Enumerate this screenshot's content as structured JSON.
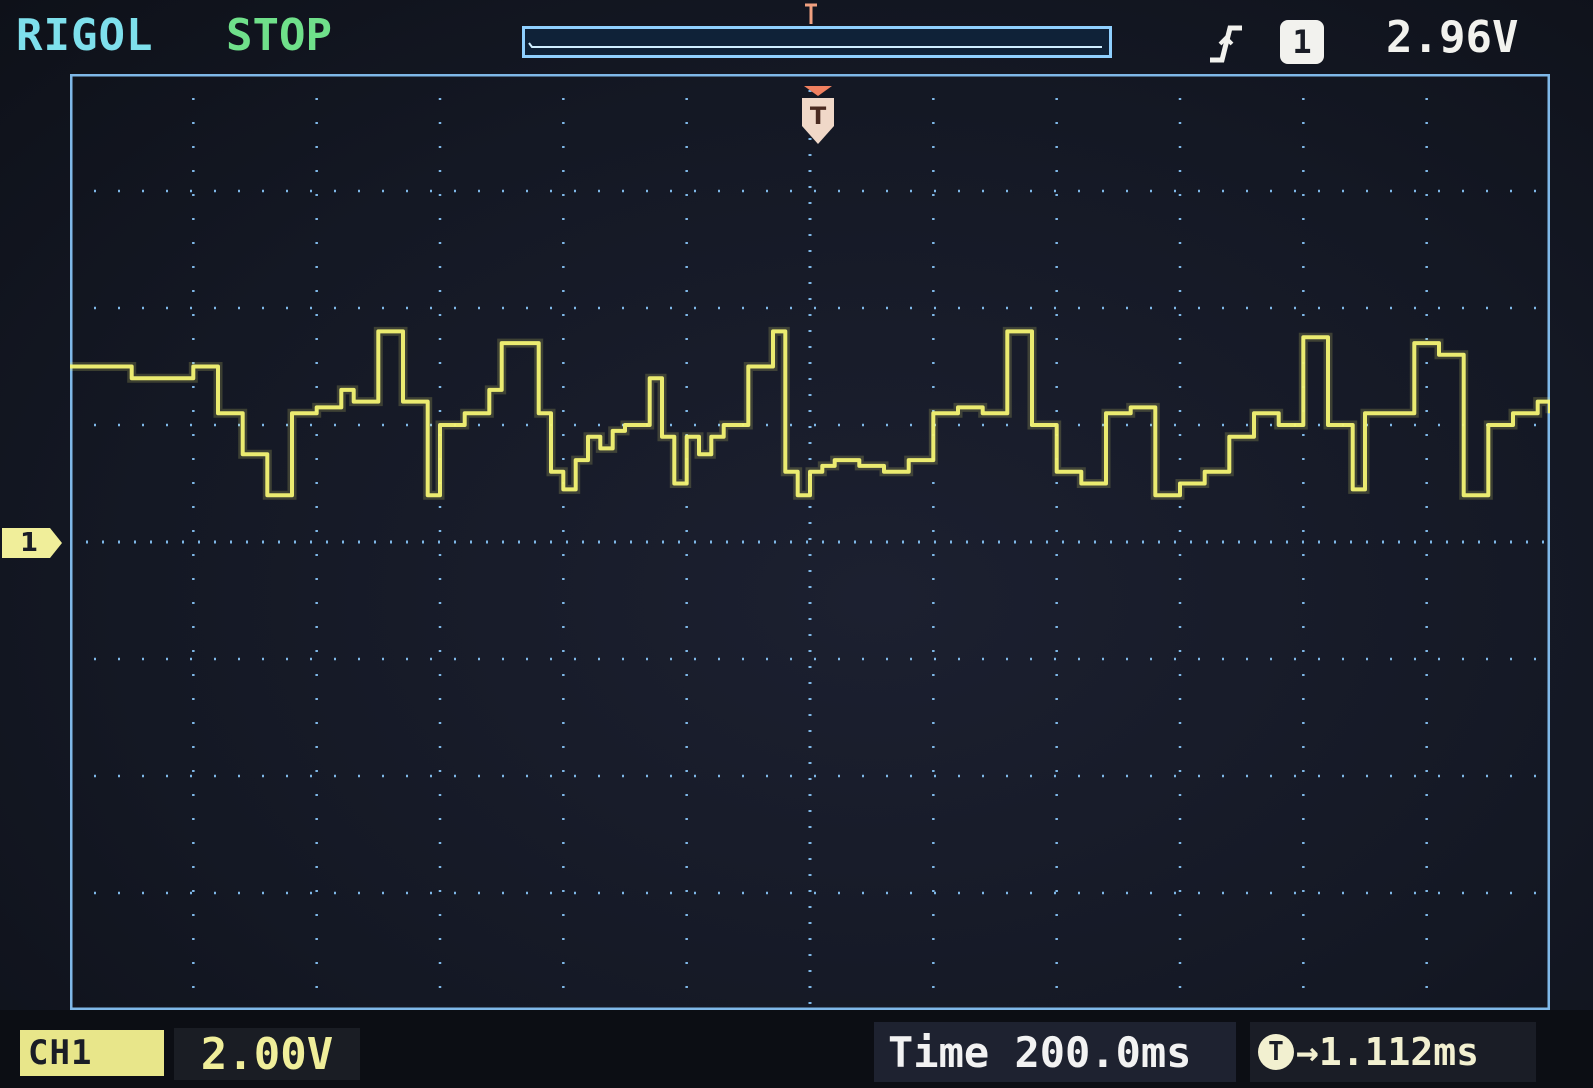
{
  "header": {
    "brand": "RIGOL",
    "run_state": "STOP",
    "trigger_source": "1",
    "trigger_level": "2.96V",
    "trigger_slope_icon": "rising-edge-icon"
  },
  "channel": {
    "ground_marker_label": "1",
    "badge_label": "CH1",
    "volts_per_div": "2.00V",
    "trace_color": "#f4f474"
  },
  "timebase": {
    "label": "Time",
    "per_div": "200.0ms",
    "offset_label": "T",
    "offset_value": "1.112ms"
  },
  "trigger_marker_label": "T",
  "colors": {
    "brand": "#7ee0ec",
    "run_state": "#6fe08a",
    "grid": "#7fb8e8",
    "trace": "#f4f474"
  },
  "chart_data": {
    "type": "line",
    "title": "",
    "xlabel": "",
    "ylabel": "",
    "divisions_x": 12,
    "divisions_y": 8,
    "xlim": [
      -1.2,
      1.2
    ],
    "ylim": [
      -6.0,
      10.0
    ],
    "grid": true,
    "series": [
      {
        "x": [
          -1.2,
          -1.1,
          -1.0,
          -0.96,
          -0.92,
          -0.88,
          -0.84,
          -0.8,
          -0.76,
          -0.74,
          -0.7,
          -0.66,
          -0.62,
          -0.6,
          -0.56,
          -0.52,
          -0.5,
          -0.48,
          -0.46,
          -0.44,
          -0.42,
          -0.4,
          -0.38,
          -0.36,
          -0.34,
          -0.32,
          -0.3,
          -0.26,
          -0.24,
          -0.22,
          -0.2,
          -0.18,
          -0.16,
          -0.14,
          -0.1,
          -0.06,
          -0.04,
          -0.02,
          0.0,
          0.02,
          0.04,
          0.08,
          0.12,
          0.16,
          0.2,
          0.24,
          0.28,
          0.32,
          0.36,
          0.4,
          0.44,
          0.48,
          0.52,
          0.56,
          0.6,
          0.64,
          0.68,
          0.72,
          0.76,
          0.8,
          0.84,
          0.88,
          0.9,
          0.94,
          0.98,
          1.02,
          1.06,
          1.1,
          1.14,
          1.18,
          1.2
        ],
        "y": [
          5.0,
          4.8,
          5.0,
          4.2,
          3.5,
          2.8,
          4.2,
          4.3,
          4.6,
          4.4,
          5.6,
          4.4,
          2.8,
          4.0,
          4.2,
          4.6,
          5.4,
          5.4,
          5.4,
          4.2,
          3.2,
          2.9,
          3.4,
          3.8,
          3.6,
          3.9,
          4.0,
          4.8,
          3.8,
          3.0,
          3.8,
          3.5,
          3.8,
          4.0,
          5.0,
          5.6,
          3.2,
          2.8,
          3.2,
          3.3,
          3.4,
          3.3,
          3.2,
          3.4,
          4.2,
          4.3,
          4.2,
          5.6,
          4.0,
          3.2,
          3.0,
          4.2,
          4.3,
          2.8,
          3.0,
          3.2,
          3.8,
          4.2,
          4.0,
          5.5,
          4.0,
          2.9,
          4.2,
          4.2,
          5.4,
          5.2,
          2.8,
          4.0,
          4.2,
          4.4,
          4.2
        ]
      }
    ]
  }
}
